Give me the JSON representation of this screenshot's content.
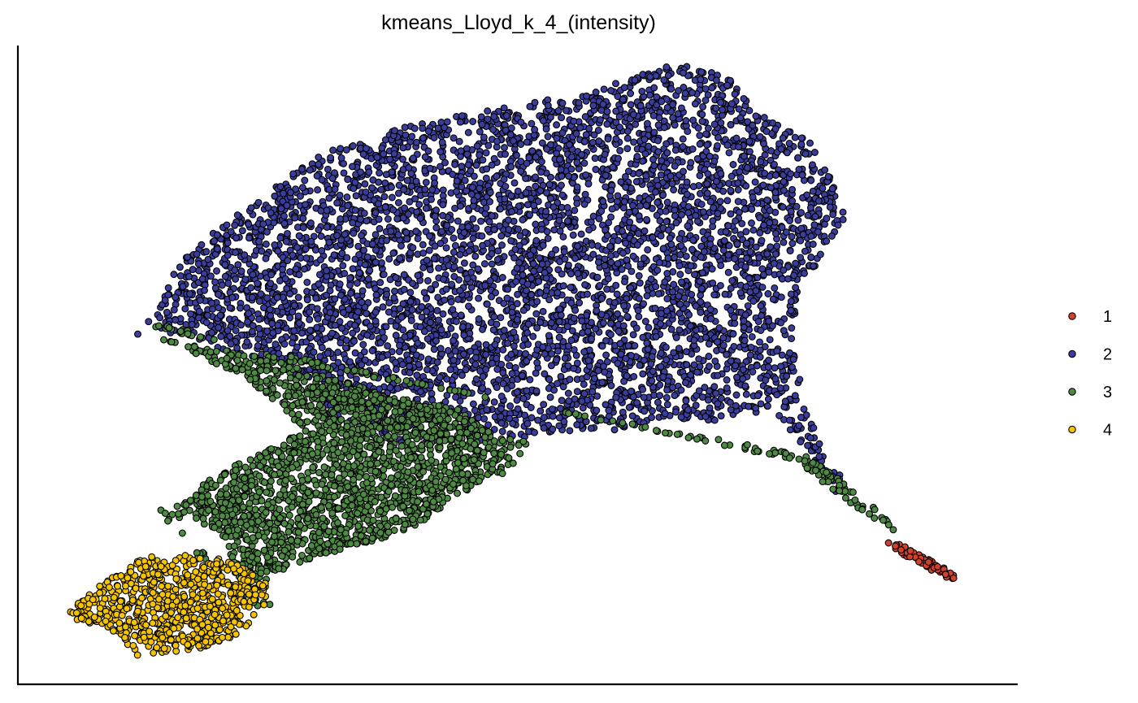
{
  "chart_data": {
    "type": "scatter",
    "title": "kmeans_Lloyd_k_4_(intensity)",
    "xlabel": "",
    "ylabel": "",
    "axes_ticks": false,
    "grid": false,
    "legend": {
      "placement": "right",
      "entries": [
        {
          "label": "1",
          "color": "#d2402e"
        },
        {
          "label": "2",
          "color": "#3b3d9a"
        },
        {
          "label": "3",
          "color": "#4e8a44"
        },
        {
          "label": "4",
          "color": "#f5c400"
        }
      ]
    },
    "marker_edge_color": "#000000",
    "xlim": [
      0,
      100
    ],
    "ylim": [
      0,
      100
    ],
    "series": [
      {
        "name": "1",
        "color": "#d2402e",
        "region": [
          [
            86.9,
            22.5
          ],
          [
            87.5,
            21.2
          ],
          [
            93.0,
            16.5
          ],
          [
            94.0,
            16.3
          ],
          [
            93.5,
            17.5
          ],
          [
            88.0,
            22.2
          ]
        ],
        "point_count": 70
      },
      {
        "name": "2",
        "color": "#3b3d9a",
        "region": [
          [
            11.6,
            54.7
          ],
          [
            14.0,
            58.4
          ],
          [
            16.2,
            66.5
          ],
          [
            19.8,
            71.1
          ],
          [
            24.9,
            76.8
          ],
          [
            30.1,
            83.0
          ],
          [
            35.8,
            86.2
          ],
          [
            41.5,
            88.2
          ],
          [
            51.1,
            91.2
          ],
          [
            56.4,
            92.3
          ],
          [
            64.5,
            96.7
          ],
          [
            68.0,
            96.8
          ],
          [
            71.0,
            95.0
          ],
          [
            73.3,
            90.7
          ],
          [
            76.3,
            87.2
          ],
          [
            79.2,
            85.0
          ],
          [
            81.4,
            79.2
          ],
          [
            82.8,
            72.6
          ],
          [
            80.7,
            67.5
          ],
          [
            78.2,
            62.2
          ],
          [
            77.5,
            54.7
          ],
          [
            78.5,
            45.0
          ],
          [
            80.7,
            36.0
          ],
          [
            83.2,
            31.0
          ],
          [
            81.6,
            29.8
          ],
          [
            78.0,
            38.5
          ],
          [
            74.8,
            42.5
          ],
          [
            72.0,
            42.0
          ],
          [
            69.0,
            40.7
          ],
          [
            65.0,
            42.0
          ],
          [
            60.5,
            39.8
          ],
          [
            57.0,
            39.8
          ],
          [
            49.5,
            38.2
          ],
          [
            44.6,
            37.8
          ],
          [
            38.8,
            37.0
          ],
          [
            30.3,
            41.2
          ],
          [
            29.8,
            46.4
          ],
          [
            25.0,
            49.8
          ],
          [
            21.0,
            52.0
          ],
          [
            18.0,
            54.0
          ],
          [
            15.0,
            55.0
          ],
          [
            13.0,
            54.7
          ]
        ],
        "point_count": 5200
      },
      {
        "name": "3",
        "color": "#4e8a44",
        "region": [
          [
            13.0,
            56.0
          ],
          [
            15.0,
            56.5
          ],
          [
            18.5,
            54.5
          ],
          [
            22.0,
            53.0
          ],
          [
            27.0,
            50.0
          ],
          [
            32.0,
            47.5
          ],
          [
            38.0,
            45.0
          ],
          [
            44.0,
            43.0
          ],
          [
            48.0,
            38.5
          ],
          [
            52.0,
            38.0
          ],
          [
            48.5,
            33.0
          ],
          [
            44.0,
            29.5
          ],
          [
            40.0,
            25.0
          ],
          [
            35.0,
            22.0
          ],
          [
            30.0,
            20.0
          ],
          [
            26.0,
            17.5
          ],
          [
            23.0,
            14.5
          ],
          [
            21.0,
            16.0
          ],
          [
            19.0,
            20.0
          ],
          [
            16.5,
            24.0
          ],
          [
            14.0,
            27.5
          ],
          [
            16.0,
            26.0
          ],
          [
            19.5,
            24.5
          ],
          [
            21.0,
            22.5
          ],
          [
            21.5,
            17.5
          ],
          [
            24.0,
            13.5
          ],
          [
            27.0,
            11.5
          ],
          [
            24.5,
            12.0
          ],
          [
            22.0,
            13.0
          ],
          [
            20.0,
            17.0
          ],
          [
            17.0,
            22.0
          ],
          [
            14.5,
            26.0
          ],
          [
            17.5,
            30.0
          ],
          [
            20.5,
            33.5
          ],
          [
            25.5,
            37.0
          ],
          [
            28.5,
            40.0
          ],
          [
            26.0,
            44.0
          ],
          [
            22.0,
            48.5
          ],
          [
            18.0,
            51.5
          ],
          [
            14.5,
            54.0
          ],
          [
            78.5,
            36.0
          ],
          [
            81.5,
            33.0
          ],
          [
            85.0,
            28.5
          ],
          [
            87.5,
            25.0
          ],
          [
            88.0,
            23.5
          ],
          [
            85.0,
            26.5
          ],
          [
            81.0,
            31.0
          ],
          [
            78.0,
            35.0
          ]
        ],
        "point_count": 2300
      },
      {
        "name": "4",
        "color": "#f5c400",
        "region": [
          [
            4.5,
            10.6
          ],
          [
            7.0,
            14.0
          ],
          [
            10.0,
            17.5
          ],
          [
            12.5,
            20.0
          ],
          [
            16.5,
            20.5
          ],
          [
            19.5,
            20.3
          ],
          [
            23.0,
            18.0
          ],
          [
            25.0,
            15.5
          ],
          [
            24.5,
            11.5
          ],
          [
            21.5,
            7.0
          ],
          [
            18.0,
            5.5
          ],
          [
            14.5,
            5.0
          ],
          [
            11.8,
            4.5
          ],
          [
            10.5,
            7.0
          ],
          [
            9.0,
            9.0
          ],
          [
            6.0,
            10.0
          ]
        ],
        "point_count": 700
      }
    ]
  }
}
